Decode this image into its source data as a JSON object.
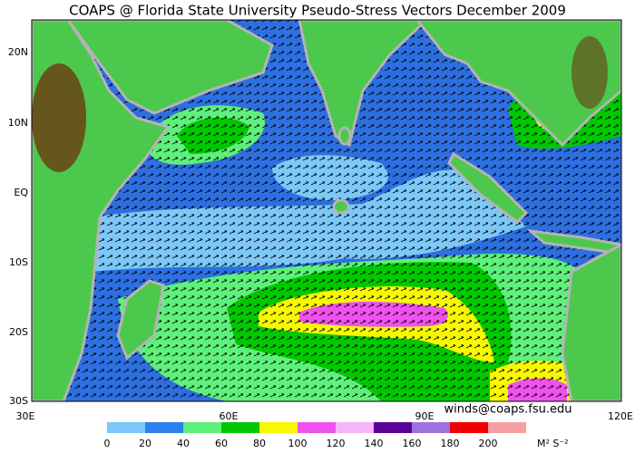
{
  "title": "COAPS @ Florida State University Pseudo-Stress Vectors December 2009",
  "credit": "winds@coaps.fsu.edu",
  "x_axis": {
    "labels": [
      "30E",
      "60E",
      "90E",
      "120E"
    ]
  },
  "y_axis": {
    "labels": [
      "20N",
      "10N",
      "EQ",
      "10S",
      "20S",
      "30S"
    ]
  },
  "colorbar": {
    "levels": [
      0,
      20,
      40,
      60,
      80,
      100,
      120,
      140,
      160,
      180,
      200
    ],
    "colors": [
      "#7cc8f8",
      "#2d7ff0",
      "#5ef07a",
      "#00c800",
      "#f8f800",
      "#f050f0",
      "#f8b4f8",
      "#5a0096",
      "#a070e0",
      "#f00000",
      "#f8a0a0"
    ],
    "unit": "M² S⁻²"
  }
}
